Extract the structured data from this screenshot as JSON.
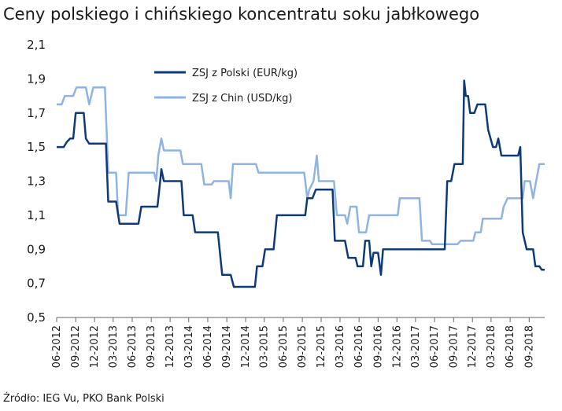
{
  "title": "Ceny polskiego i chińskiego koncentratu soku jabłkowego",
  "source": "Źródło: IEG Vu, PKO Bank Polski",
  "chart_data": {
    "type": "line",
    "ylim": [
      0.5,
      2.1
    ],
    "yticks": [
      "0,5",
      "0,7",
      "0,9",
      "1,1",
      "1,3",
      "1,5",
      "1,7",
      "1,9",
      "2,1"
    ],
    "yticks_values": [
      0.5,
      0.7,
      0.9,
      1.1,
      1.3,
      1.5,
      1.7,
      1.9,
      2.1
    ],
    "xticks": [
      "06-2012",
      "09-2012",
      "12-2012",
      "03-2013",
      "06-2013",
      "09-2013",
      "12-2013",
      "03-2014",
      "06-2014",
      "09-2014",
      "12-2014",
      "03-2015",
      "06-2015",
      "09-2015",
      "12-2015",
      "03-2016",
      "06-2016",
      "09-2016",
      "12-2016",
      "03-2017",
      "06-2017",
      "09-2017",
      "12-2017",
      "03-2018",
      "06-2018",
      "09-2018"
    ],
    "xrange": [
      "2012-06",
      "2018-11"
    ],
    "legend_position": "top-center",
    "grid": false,
    "series": [
      {
        "name": "ZSJ z Polski (EUR/kg)",
        "color": "#0f3a7a",
        "points": [
          [
            "2012-06-01",
            1.5
          ],
          [
            "2012-07-05",
            1.5
          ],
          [
            "2012-07-20",
            1.53
          ],
          [
            "2012-08-05",
            1.55
          ],
          [
            "2012-08-20",
            1.55
          ],
          [
            "2012-09-01",
            1.7
          ],
          [
            "2012-10-10",
            1.7
          ],
          [
            "2012-10-20",
            1.55
          ],
          [
            "2012-11-05",
            1.52
          ],
          [
            "2013-01-25",
            1.52
          ],
          [
            "2013-02-05",
            1.18
          ],
          [
            "2013-03-15",
            1.18
          ],
          [
            "2013-04-01",
            1.05
          ],
          [
            "2013-07-01",
            1.05
          ],
          [
            "2013-07-15",
            1.15
          ],
          [
            "2013-10-01",
            1.15
          ],
          [
            "2013-10-10",
            1.25
          ],
          [
            "2013-10-20",
            1.37
          ],
          [
            "2013-11-01",
            1.3
          ],
          [
            "2014-01-25",
            1.3
          ],
          [
            "2014-02-05",
            1.1
          ],
          [
            "2014-03-20",
            1.1
          ],
          [
            "2014-04-01",
            1.0
          ],
          [
            "2014-07-20",
            1.0
          ],
          [
            "2014-08-10",
            0.75
          ],
          [
            "2014-09-20",
            0.75
          ],
          [
            "2014-10-05",
            0.68
          ],
          [
            "2015-01-15",
            0.68
          ],
          [
            "2015-01-25",
            0.8
          ],
          [
            "2015-02-20",
            0.8
          ],
          [
            "2015-03-05",
            0.9
          ],
          [
            "2015-04-15",
            0.9
          ],
          [
            "2015-05-01",
            1.1
          ],
          [
            "2015-09-15",
            1.1
          ],
          [
            "2015-09-25",
            1.2
          ],
          [
            "2015-10-20",
            1.2
          ],
          [
            "2015-11-05",
            1.25
          ],
          [
            "2016-01-25",
            1.25
          ],
          [
            "2016-02-05",
            0.95
          ],
          [
            "2016-03-25",
            0.95
          ],
          [
            "2016-04-10",
            0.85
          ],
          [
            "2016-05-15",
            0.85
          ],
          [
            "2016-05-25",
            0.8
          ],
          [
            "2016-06-20",
            0.8
          ],
          [
            "2016-07-01",
            0.95
          ],
          [
            "2016-07-20",
            0.95
          ],
          [
            "2016-07-30",
            0.8
          ],
          [
            "2016-08-10",
            0.88
          ],
          [
            "2016-09-01",
            0.88
          ],
          [
            "2016-09-15",
            0.75
          ],
          [
            "2016-09-25",
            0.9
          ],
          [
            "2017-07-20",
            0.9
          ],
          [
            "2017-08-01",
            1.3
          ],
          [
            "2017-08-20",
            1.3
          ],
          [
            "2017-09-05",
            1.4
          ],
          [
            "2017-10-15",
            1.4
          ],
          [
            "2017-10-22",
            1.89
          ],
          [
            "2017-10-30",
            1.8
          ],
          [
            "2017-11-10",
            1.8
          ],
          [
            "2017-11-20",
            1.7
          ],
          [
            "2017-12-10",
            1.7
          ],
          [
            "2017-12-25",
            1.75
          ],
          [
            "2018-02-01",
            1.75
          ],
          [
            "2018-02-15",
            1.6
          ],
          [
            "2018-03-10",
            1.5
          ],
          [
            "2018-03-25",
            1.5
          ],
          [
            "2018-04-05",
            1.55
          ],
          [
            "2018-04-20",
            1.45
          ],
          [
            "2018-07-10",
            1.45
          ],
          [
            "2018-07-20",
            1.5
          ],
          [
            "2018-08-01",
            1.0
          ],
          [
            "2018-08-20",
            0.9
          ],
          [
            "2018-09-20",
            0.9
          ],
          [
            "2018-10-01",
            0.8
          ],
          [
            "2018-10-20",
            0.8
          ],
          [
            "2018-11-01",
            0.78
          ],
          [
            "2018-11-15",
            0.78
          ]
        ]
      },
      {
        "name": "ZSJ z Chin (USD/kg)",
        "color": "#8fb3e3",
        "points": [
          [
            "2012-06-01",
            1.75
          ],
          [
            "2012-06-25",
            1.75
          ],
          [
            "2012-07-10",
            1.8
          ],
          [
            "2012-08-20",
            1.8
          ],
          [
            "2012-09-05",
            1.85
          ],
          [
            "2012-10-20",
            1.85
          ],
          [
            "2012-11-05",
            1.75
          ],
          [
            "2012-11-25",
            1.85
          ],
          [
            "2013-01-20",
            1.85
          ],
          [
            "2013-02-05",
            1.35
          ],
          [
            "2013-03-15",
            1.35
          ],
          [
            "2013-03-25",
            1.1
          ],
          [
            "2013-05-01",
            1.1
          ],
          [
            "2013-05-15",
            1.35
          ],
          [
            "2013-09-15",
            1.35
          ],
          [
            "2013-09-25",
            1.3
          ],
          [
            "2013-10-05",
            1.45
          ],
          [
            "2013-10-20",
            1.55
          ],
          [
            "2013-11-01",
            1.48
          ],
          [
            "2014-01-20",
            1.48
          ],
          [
            "2014-02-01",
            1.4
          ],
          [
            "2014-05-01",
            1.4
          ],
          [
            "2014-05-15",
            1.28
          ],
          [
            "2014-06-20",
            1.28
          ],
          [
            "2014-07-01",
            1.3
          ],
          [
            "2014-09-10",
            1.3
          ],
          [
            "2014-09-20",
            1.2
          ],
          [
            "2014-10-01",
            1.4
          ],
          [
            "2015-01-20",
            1.4
          ],
          [
            "2015-02-01",
            1.35
          ],
          [
            "2015-09-10",
            1.35
          ],
          [
            "2015-09-25",
            1.2
          ],
          [
            "2015-10-05",
            1.25
          ],
          [
            "2015-10-25",
            1.3
          ],
          [
            "2015-11-10",
            1.45
          ],
          [
            "2015-11-20",
            1.3
          ],
          [
            "2016-02-01",
            1.3
          ],
          [
            "2016-02-15",
            1.1
          ],
          [
            "2016-03-25",
            1.1
          ],
          [
            "2016-04-05",
            1.05
          ],
          [
            "2016-04-20",
            1.15
          ],
          [
            "2016-05-20",
            1.15
          ],
          [
            "2016-06-01",
            1.0
          ],
          [
            "2016-07-05",
            1.0
          ],
          [
            "2016-07-20",
            1.1
          ],
          [
            "2016-12-05",
            1.1
          ],
          [
            "2016-12-15",
            1.2
          ],
          [
            "2017-03-20",
            1.2
          ],
          [
            "2017-04-01",
            0.95
          ],
          [
            "2017-05-10",
            0.95
          ],
          [
            "2017-05-20",
            0.93
          ],
          [
            "2017-09-20",
            0.93
          ],
          [
            "2017-10-05",
            0.95
          ],
          [
            "2017-12-05",
            0.95
          ],
          [
            "2017-12-15",
            1.0
          ],
          [
            "2018-01-10",
            1.0
          ],
          [
            "2018-01-20",
            1.08
          ],
          [
            "2018-04-20",
            1.08
          ],
          [
            "2018-05-01",
            1.15
          ],
          [
            "2018-05-20",
            1.2
          ],
          [
            "2018-08-01",
            1.2
          ],
          [
            "2018-08-10",
            1.3
          ],
          [
            "2018-09-05",
            1.3
          ],
          [
            "2018-09-20",
            1.2
          ],
          [
            "2018-10-05",
            1.3
          ],
          [
            "2018-10-20",
            1.4
          ],
          [
            "2018-11-15",
            1.4
          ]
        ]
      }
    ]
  }
}
